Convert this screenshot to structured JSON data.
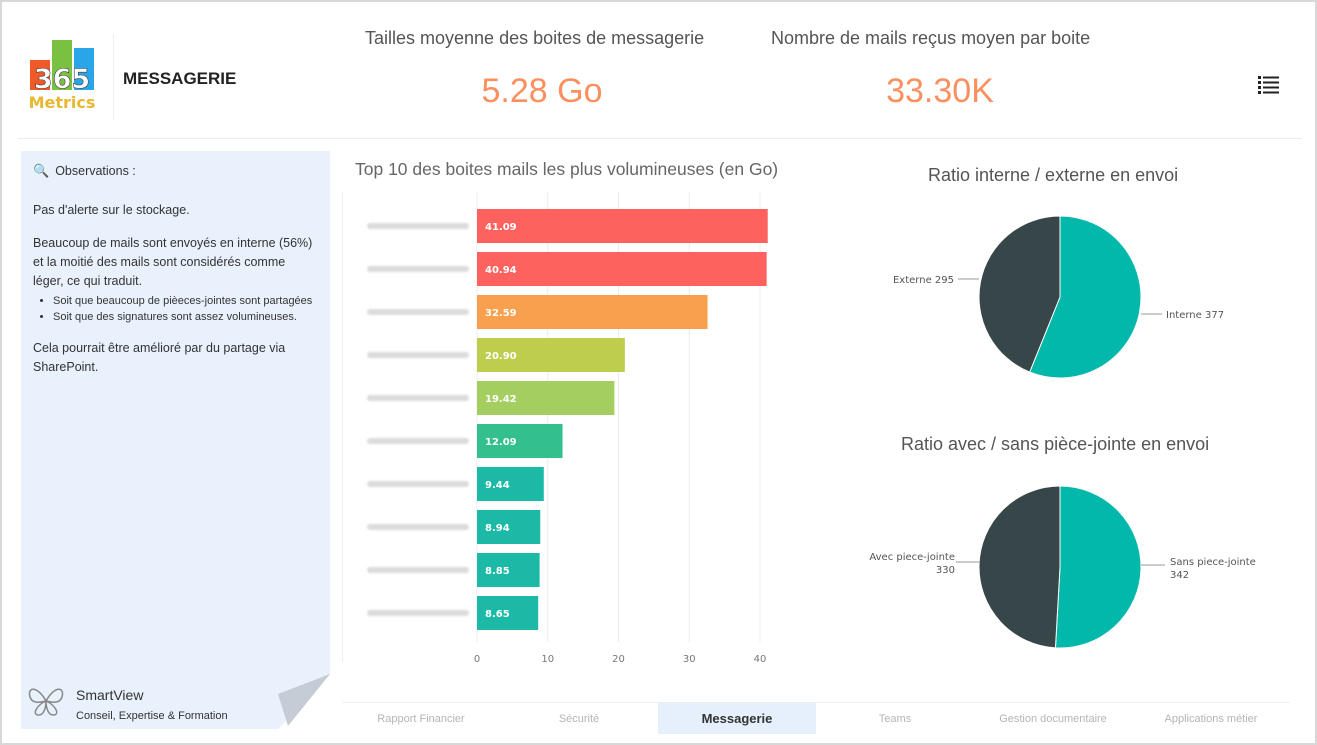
{
  "header": {
    "logo_text": "365 Metrics",
    "title": "MESSAGERIE",
    "menu_icon": "list-icon"
  },
  "kpis": [
    {
      "label": "Tailles moyenne des boites de messagerie",
      "value": "5.28 Go"
    },
    {
      "label": "Nombre de mails reçus moyen par boite",
      "value": "33.30K"
    }
  ],
  "observations": {
    "icon": "magnifier-icon",
    "title": "Observations :",
    "p1": "Pas d'alerte sur le stockage.",
    "p2": "Beaucoup de mails sont envoyés en interne (56%) et la moitié des mails sont considérés comme léger, ce qui traduit.",
    "bullets": [
      "Soit que beaucoup de pièeces-jointes sont partagées",
      "Soit que des signatures sont assez volumineuses."
    ],
    "p3": "Cela pourrait être amélioré par du partage via SharePoint.",
    "brand": "SmartView",
    "tagline": "Conseil, Expertise & Formation"
  },
  "chart_data": [
    {
      "type": "bar",
      "orientation": "horizontal",
      "title": "Top 10 des boites mails les plus volumineuses (en Go)",
      "categories": [
        "",
        "",
        "",
        "",
        "",
        "",
        "",
        "",
        "",
        ""
      ],
      "values": [
        41.09,
        40.94,
        32.59,
        20.9,
        19.42,
        12.09,
        9.44,
        8.94,
        8.85,
        8.65
      ],
      "labels": [
        "41.09",
        "40.94",
        "32.59",
        "20.90",
        "19.42",
        "12.09",
        "9.44",
        "8.94",
        "8.85",
        "8.65"
      ],
      "colors": [
        "#fd625e",
        "#fd625e",
        "#f8a04e",
        "#bfcd4f",
        "#a4ce60",
        "#34c08e",
        "#1bb9a6",
        "#1bb9a6",
        "#1bb9a6",
        "#1bb9a6"
      ],
      "xlim": [
        0,
        42
      ],
      "xticks": [
        "0",
        "10",
        "20",
        "30",
        "40"
      ],
      "grid": true
    },
    {
      "type": "pie",
      "title": "Ratio interne / externe en envoi",
      "slices": [
        {
          "name": "Interne",
          "value": 377,
          "label": "Interne 377",
          "color": "#01b8aa"
        },
        {
          "name": "Externe",
          "value": 295,
          "label": "Externe 295",
          "color": "#374649"
        }
      ]
    },
    {
      "type": "pie",
      "title": "Ratio avec / sans pièce-jointe en envoi",
      "slices": [
        {
          "name": "Sans piece-jointe",
          "value": 342,
          "label": "Sans piece-jointe",
          "label2": "342",
          "color": "#01b8aa"
        },
        {
          "name": "Avec piece-jointe",
          "value": 330,
          "label": "Avec piece-jointe",
          "label2": "330",
          "color": "#374649"
        }
      ]
    }
  ],
  "tabs": [
    "Rapport Financier",
    "Sécurité",
    "Messagerie",
    "Teams",
    "Gestion documentaire",
    "Applications métier"
  ],
  "active_tab": "Messagerie"
}
